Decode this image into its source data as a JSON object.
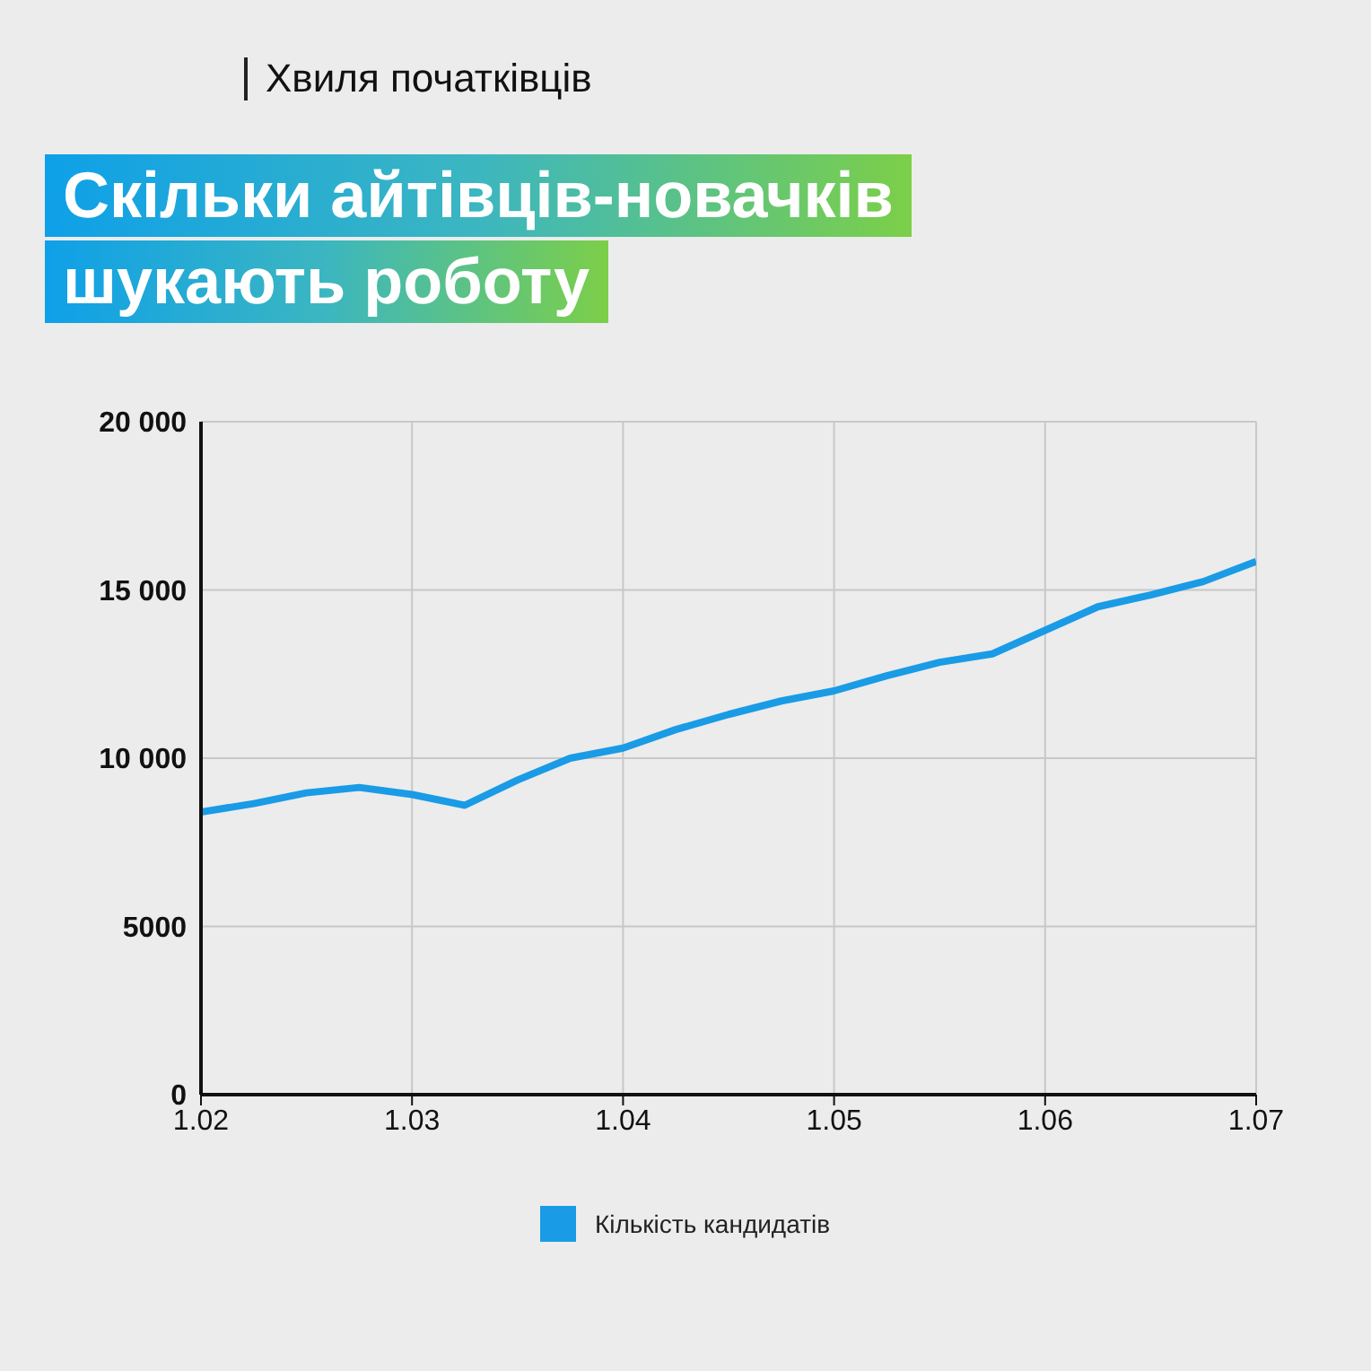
{
  "chart_data": {
    "type": "line",
    "subtitle": "Хвиля початківців",
    "title": "Скільки айтівців-новачків\nшукають роботу",
    "categories": [
      "1.02",
      null,
      null,
      null,
      "1.03",
      null,
      null,
      null,
      "1.04",
      null,
      null,
      null,
      "1.05",
      null,
      null,
      null,
      "1.06",
      null,
      null,
      null,
      "1.07"
    ],
    "series": [
      {
        "name": "Кількість кандидатів",
        "color": "#1a9be6",
        "values": [
          8400,
          8650,
          8970,
          9130,
          8920,
          8600,
          9350,
          10000,
          10300,
          10850,
          11300,
          11700,
          12000,
          12450,
          12850,
          13100,
          13800,
          14500,
          14850,
          15250,
          15850
        ]
      }
    ],
    "ylim": [
      0,
      20000
    ],
    "yticks": [
      0,
      {
        "value": 5000,
        "label": "5000"
      },
      {
        "value": 10000,
        "label": "10 000"
      },
      {
        "value": 15000,
        "label": "15 000"
      },
      {
        "value": 20000,
        "label": "20 000"
      }
    ],
    "grid": true,
    "legend": "bottom",
    "marker": "none",
    "line_style": "solid"
  }
}
